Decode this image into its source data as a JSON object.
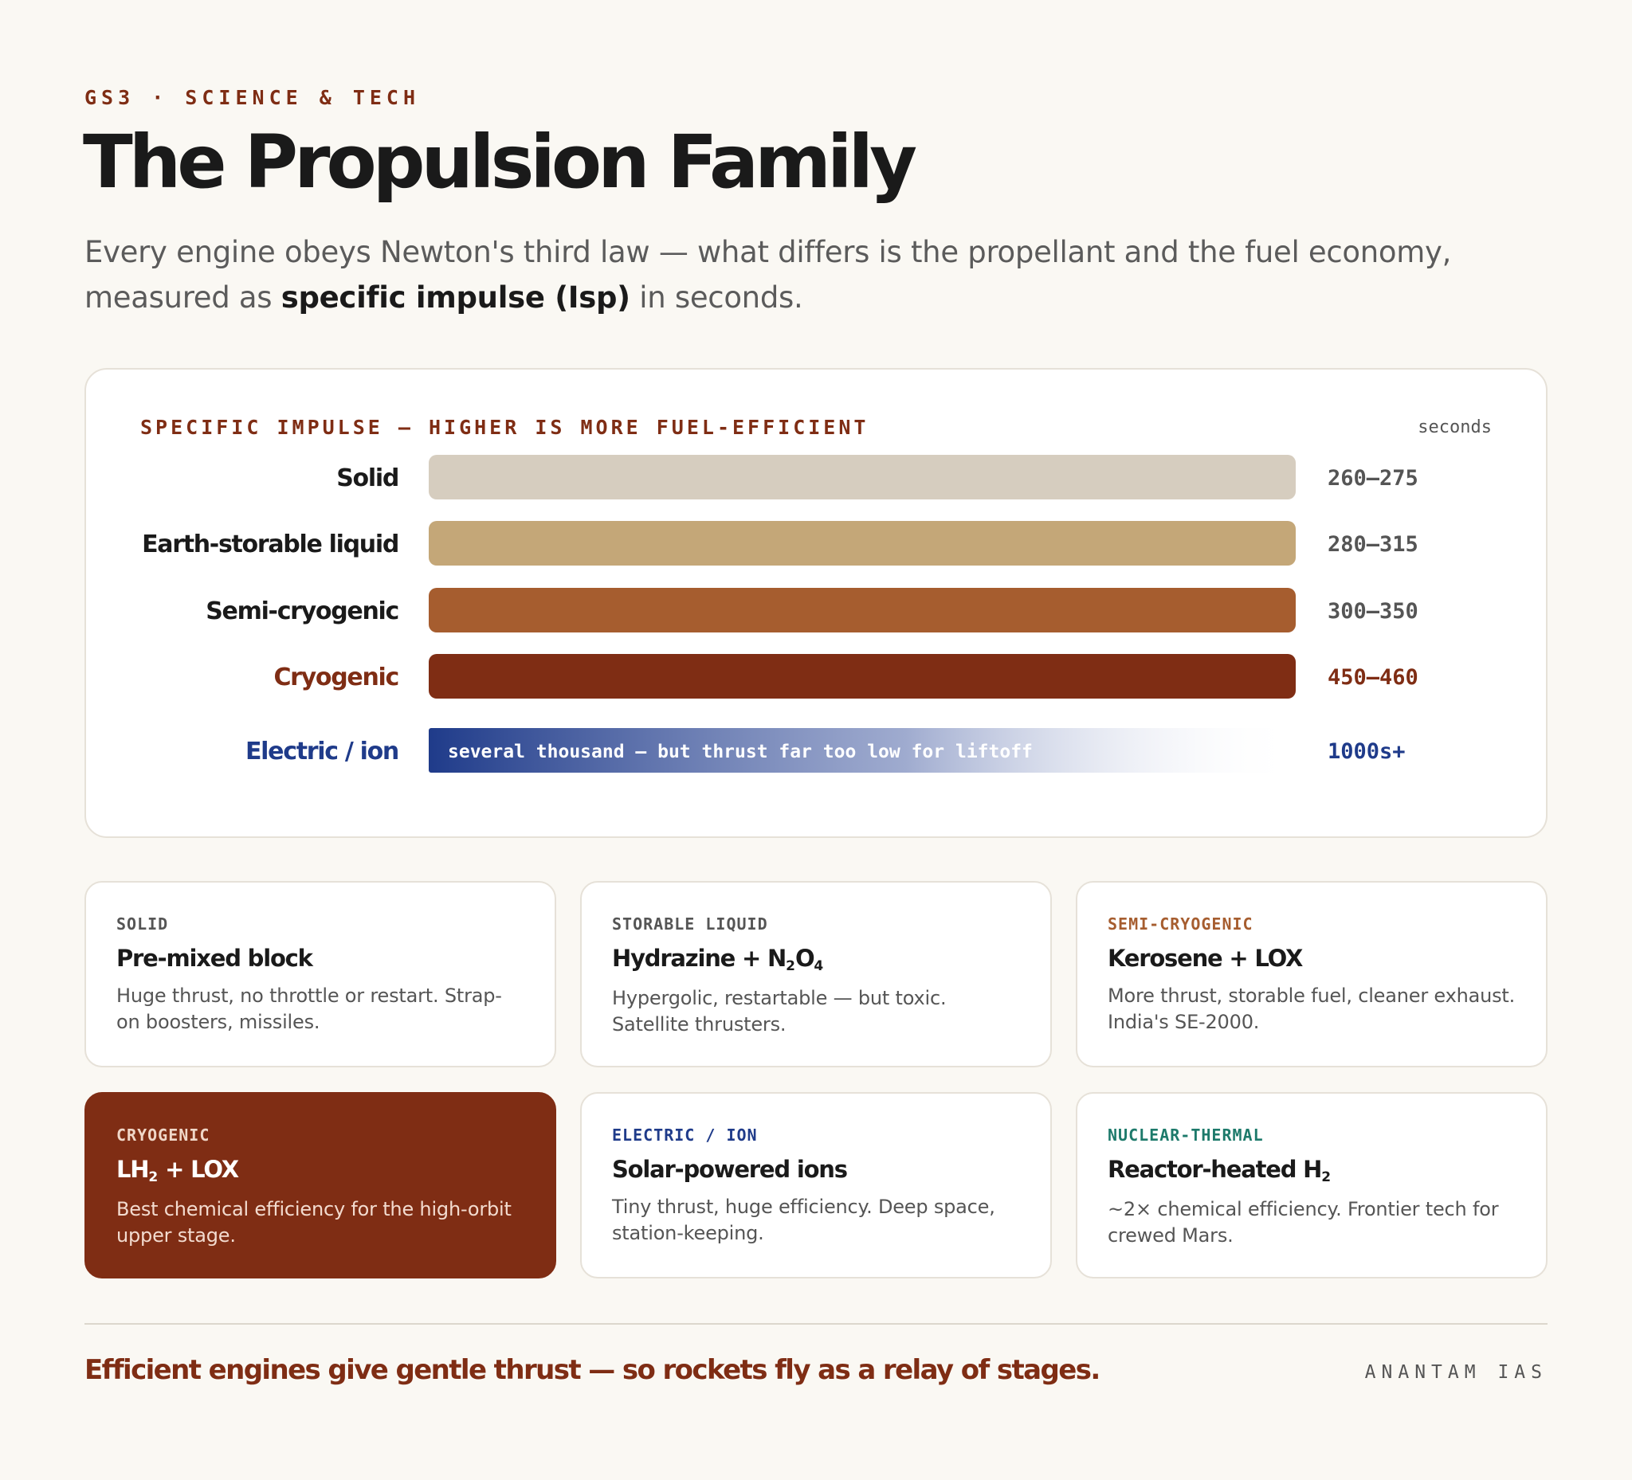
{
  "header": {
    "eyebrow": "GS3 · SCIENCE & TECH",
    "title": "The Propulsion Family",
    "subtitle_pre": "Every engine obeys Newton's third law — what differs is the propellant and the fuel economy, measured as ",
    "subtitle_bold": "specific impulse (Isp)",
    "subtitle_post": " in seconds."
  },
  "chart_data": {
    "type": "bar",
    "orientation": "horizontal",
    "title": "SPECIFIC IMPULSE — HIGHER IS MORE FUEL-EFFICIENT",
    "unit": "seconds",
    "categories": [
      "Solid",
      "Earth-storable liquid",
      "Semi-cryogenic",
      "Cryogenic",
      "Electric / ion"
    ],
    "value_labels": [
      "260–275",
      "280–315",
      "300–350",
      "450–460",
      "1000s+"
    ],
    "ranges": [
      [
        260,
        275
      ],
      [
        280,
        315
      ],
      [
        300,
        350
      ],
      [
        450,
        460
      ],
      [
        1000,
        null
      ]
    ],
    "bar_note": "several thousand — but thrust far too low for liftoff",
    "colors": [
      "#d6cdbf",
      "#c4a778",
      "#a65d2f",
      "#7f2d14",
      "#1f3b8a"
    ],
    "label_colors": [
      "#1a1a1a",
      "#1a1a1a",
      "#1a1a1a",
      "#7f2d14",
      "#1f3b8a"
    ],
    "value_colors": [
      "#555555",
      "#555555",
      "#555555",
      "#7f2d14",
      "#1f3b8a"
    ],
    "grid": false,
    "legend": "none"
  },
  "cards": [
    {
      "tag": "SOLID",
      "name": "Pre-mixed block",
      "desc": "Huge thrust, no throttle or restart. Strap-on boosters, missiles.",
      "tag_color": "#555555"
    },
    {
      "tag": "STORABLE LIQUID",
      "name_pre": "Hydrazine + N",
      "name_sub1": "2",
      "name_mid": "O",
      "name_sub2": "4",
      "desc": "Hypergolic, restartable — but toxic. Satellite thrusters.",
      "tag_color": "#555555"
    },
    {
      "tag": "SEMI-CRYOGENIC",
      "name": "Kerosene + LOX",
      "desc": "More thrust, storable fuel, cleaner exhaust. India's SE-2000.",
      "tag_color": "#a65d2f"
    },
    {
      "tag": "CRYOGENIC",
      "name_pre": "LH",
      "name_sub1": "2",
      "name_mid": " + LOX",
      "desc": "Best chemical efficiency for the high-orbit upper stage.",
      "tag_color": "#f0d7c8"
    },
    {
      "tag": "ELECTRIC / ION",
      "name": "Solar-powered ions",
      "desc": "Tiny thrust, huge efficiency. Deep space, station-keeping.",
      "tag_color": "#1f3b8a"
    },
    {
      "tag": "NUCLEAR-THERMAL",
      "name_pre": "Reactor-heated H",
      "name_sub1": "2",
      "desc": "~2× chemical efficiency. Frontier tech for crewed Mars.",
      "tag_color": "#1d7a6b"
    }
  ],
  "footer": {
    "tagline": "Efficient engines give gentle thrust — so rockets fly as a relay of stages.",
    "brand": "ANANTAM IAS"
  }
}
